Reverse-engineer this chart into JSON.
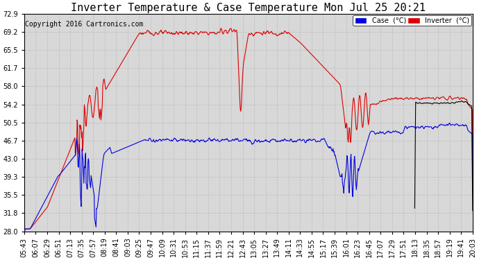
{
  "title": "Inverter Temperature & Case Temperature Mon Jul 25 20:21",
  "copyright": "Copyright 2016 Cartronics.com",
  "ylim": [
    28.0,
    72.9
  ],
  "yticks": [
    28.0,
    31.8,
    35.5,
    39.3,
    43.0,
    46.7,
    50.5,
    54.2,
    58.0,
    61.7,
    65.5,
    69.2,
    72.9
  ],
  "legend_case_label": "Case  (°C)",
  "legend_inverter_label": "Inverter  (°C)",
  "case_color": "#0000dd",
  "inverter_color": "#dd0000",
  "black_color": "#000000",
  "background_color": "#ffffff",
  "plot_bg_color": "#d8d8d8",
  "grid_color": "#bbbbbb",
  "title_fontsize": 11,
  "tick_fontsize": 7,
  "copyright_fontsize": 7,
  "xtick_labels": [
    "05:43",
    "06:07",
    "06:29",
    "06:51",
    "07:13",
    "07:35",
    "07:57",
    "08:19",
    "08:41",
    "09:03",
    "09:25",
    "09:47",
    "10:09",
    "10:31",
    "10:53",
    "11:15",
    "11:37",
    "11:59",
    "12:21",
    "12:43",
    "13:05",
    "13:27",
    "13:49",
    "14:11",
    "14:33",
    "14:55",
    "15:17",
    "15:39",
    "16:01",
    "16:23",
    "16:45",
    "17:07",
    "17:29",
    "17:51",
    "18:13",
    "18:35",
    "18:57",
    "19:19",
    "19:41",
    "20:03"
  ]
}
